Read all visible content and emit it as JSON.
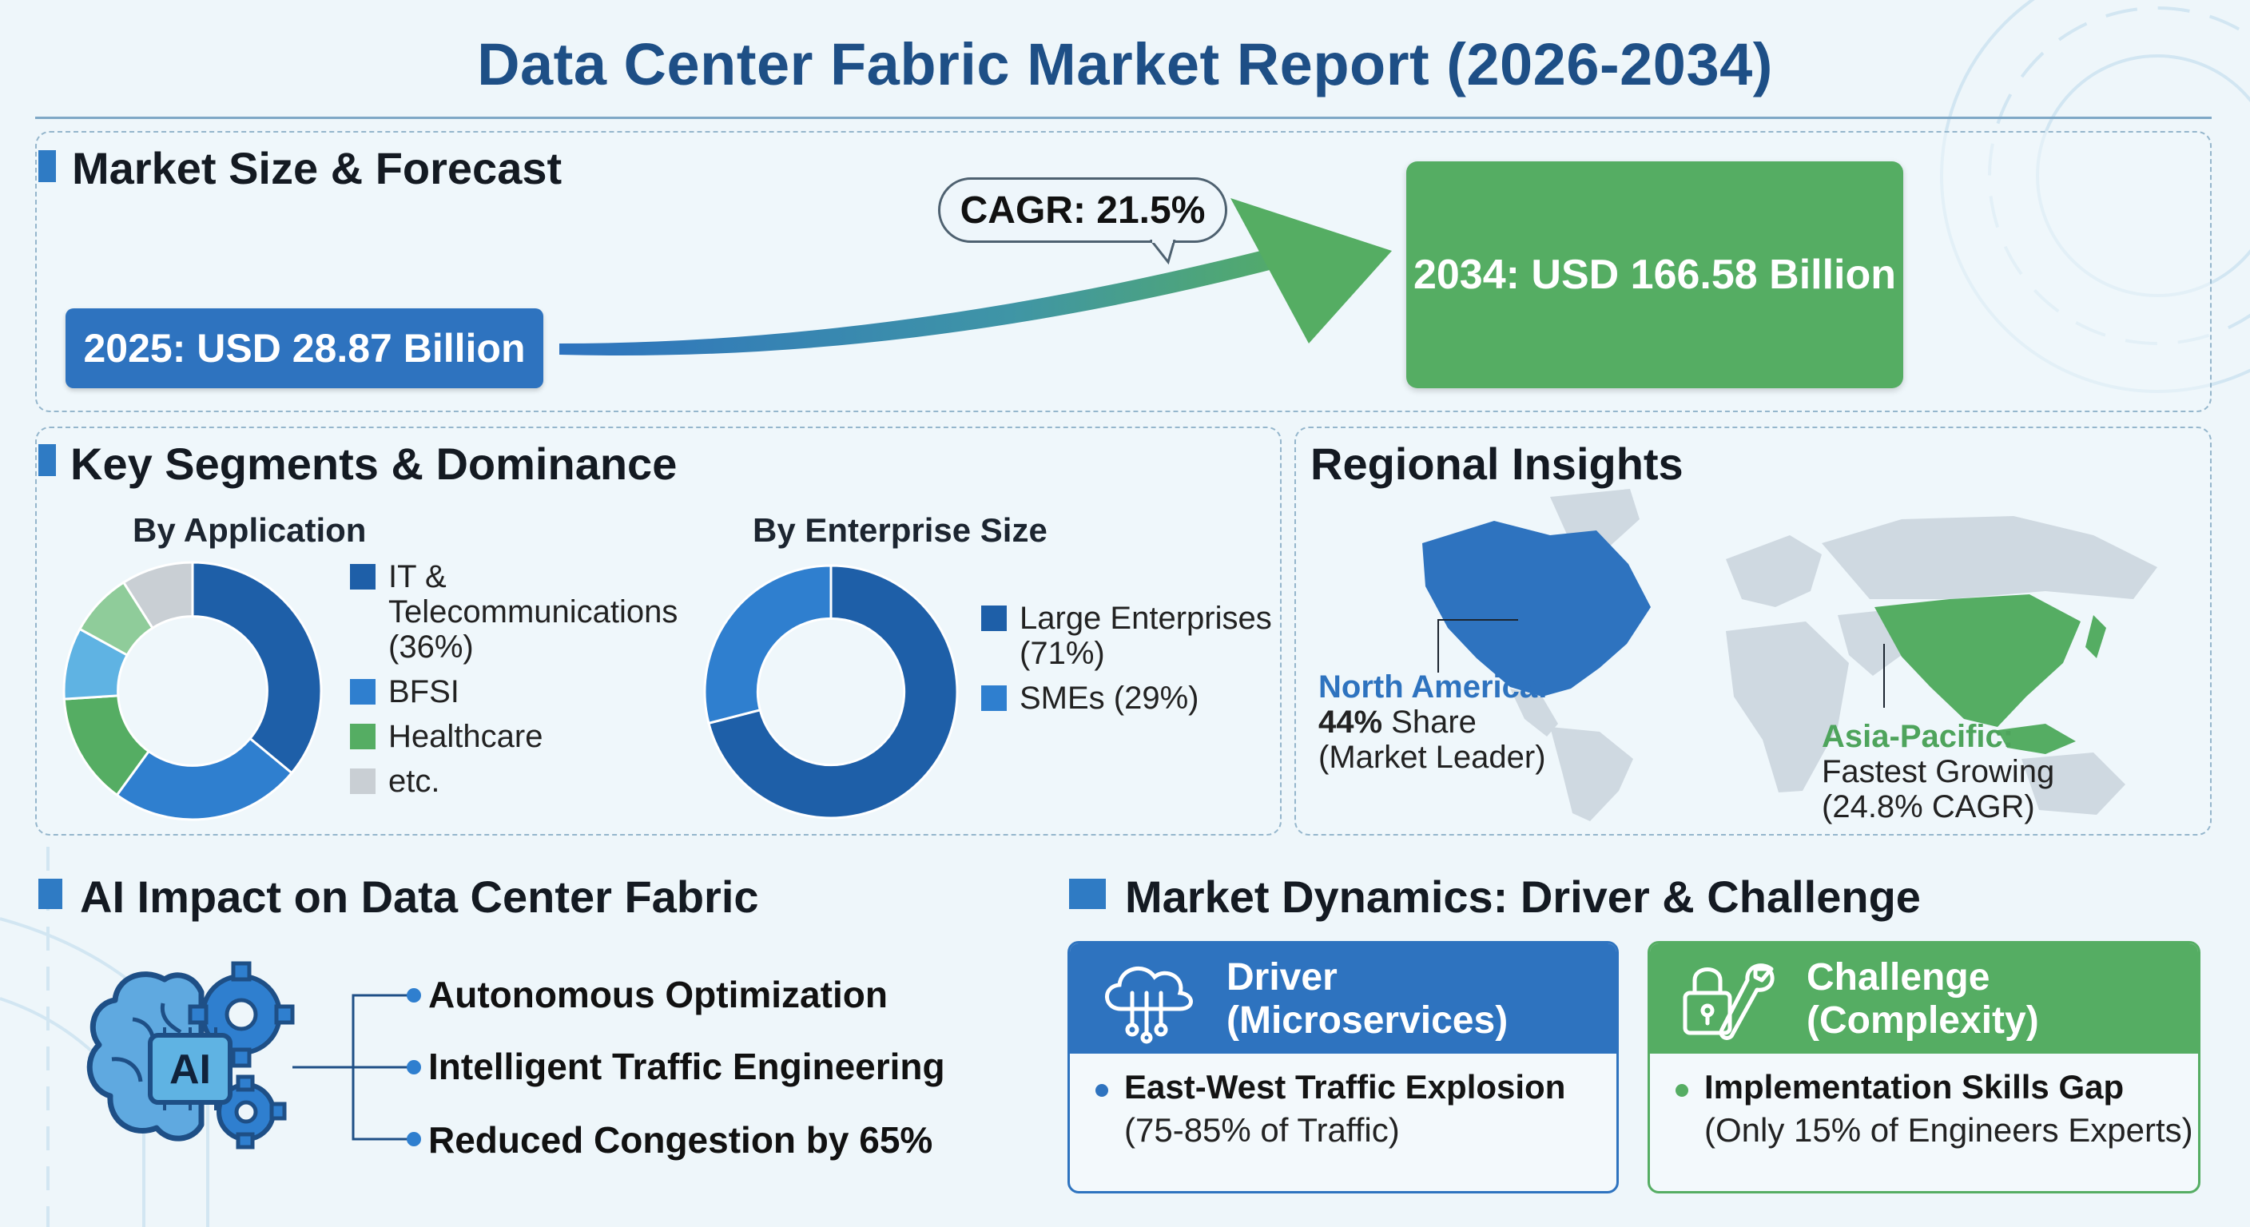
{
  "title": "Data Center Fabric Market Report (2026-2034)",
  "colors": {
    "accent_blue": "#2e73bf",
    "dark_blue": "#1e5fa8",
    "accent_green": "#55ad63",
    "light_green": "#8fcc9a",
    "sky_blue": "#5fb3e3",
    "grey": "#c9cfd4"
  },
  "market_size": {
    "heading": "Market Size & Forecast",
    "start_label": "2025: USD 28.87 Billion",
    "end_label": "2034: USD 166.58 Billion",
    "cagr_label": "CAGR: 21.5%"
  },
  "segments": {
    "heading": "Key Segments & Dominance",
    "by_application": {
      "title": "By Application",
      "legend": [
        {
          "label": "IT & Telecommunications (36%)",
          "color": "#1e5fa8"
        },
        {
          "label": "BFSI",
          "color": "#2f7fcf"
        },
        {
          "label": "Healthcare",
          "color": "#55ad63"
        },
        {
          "label": "etc.",
          "color": "#c9cfd4"
        }
      ]
    },
    "by_enterprise": {
      "title": "By Enterprise Size",
      "legend": [
        {
          "label": "Large Enterprises (71%)",
          "color": "#1e5fa8"
        },
        {
          "label": "SMEs (29%)",
          "color": "#2f7fcf"
        }
      ]
    }
  },
  "chart_data": [
    {
      "type": "pie",
      "title": "By Application",
      "categories": [
        "IT & Telecommunications",
        "BFSI",
        "Healthcare",
        "Other (light blue)",
        "Other (light green)",
        "etc."
      ],
      "values": [
        36,
        24,
        14,
        9,
        8,
        9
      ],
      "colors": [
        "#1e5fa8",
        "#2f7fcf",
        "#55ad63",
        "#5fb3e3",
        "#8fcc9a",
        "#c9cfd4"
      ],
      "donut": true
    },
    {
      "type": "pie",
      "title": "By Enterprise Size",
      "categories": [
        "Large Enterprises",
        "SMEs"
      ],
      "values": [
        71,
        29
      ],
      "colors": [
        "#1e5fa8",
        "#2f7fcf"
      ],
      "donut": true
    }
  ],
  "regional": {
    "heading": "Regional Insights",
    "north_america": {
      "name": "North America:",
      "share_bold": "44%",
      "share_rest": " Share",
      "note": "(Market Leader)"
    },
    "asia_pacific": {
      "name": "Asia-Pacific:",
      "line1": "Fastest Growing",
      "line2": "(24.8% CAGR)"
    }
  },
  "ai_impact": {
    "heading": "AI Impact on Data Center Fabric",
    "chip_label": "AI",
    "items": [
      "Autonomous Optimization",
      "Intelligent Traffic Engineering",
      "Reduced Congestion by 65%"
    ]
  },
  "dynamics": {
    "heading": "Market Dynamics: Driver & Challenge",
    "driver": {
      "title_line1": "Driver",
      "title_line2": "(Microservices)",
      "point": "East-West Traffic Explosion",
      "detail": "(75-85% of Traffic)"
    },
    "challenge": {
      "title_line1": "Challenge",
      "title_line2": "(Complexity)",
      "point": "Implementation Skills Gap",
      "detail": "(Only 15% of Engineers Experts)"
    }
  }
}
